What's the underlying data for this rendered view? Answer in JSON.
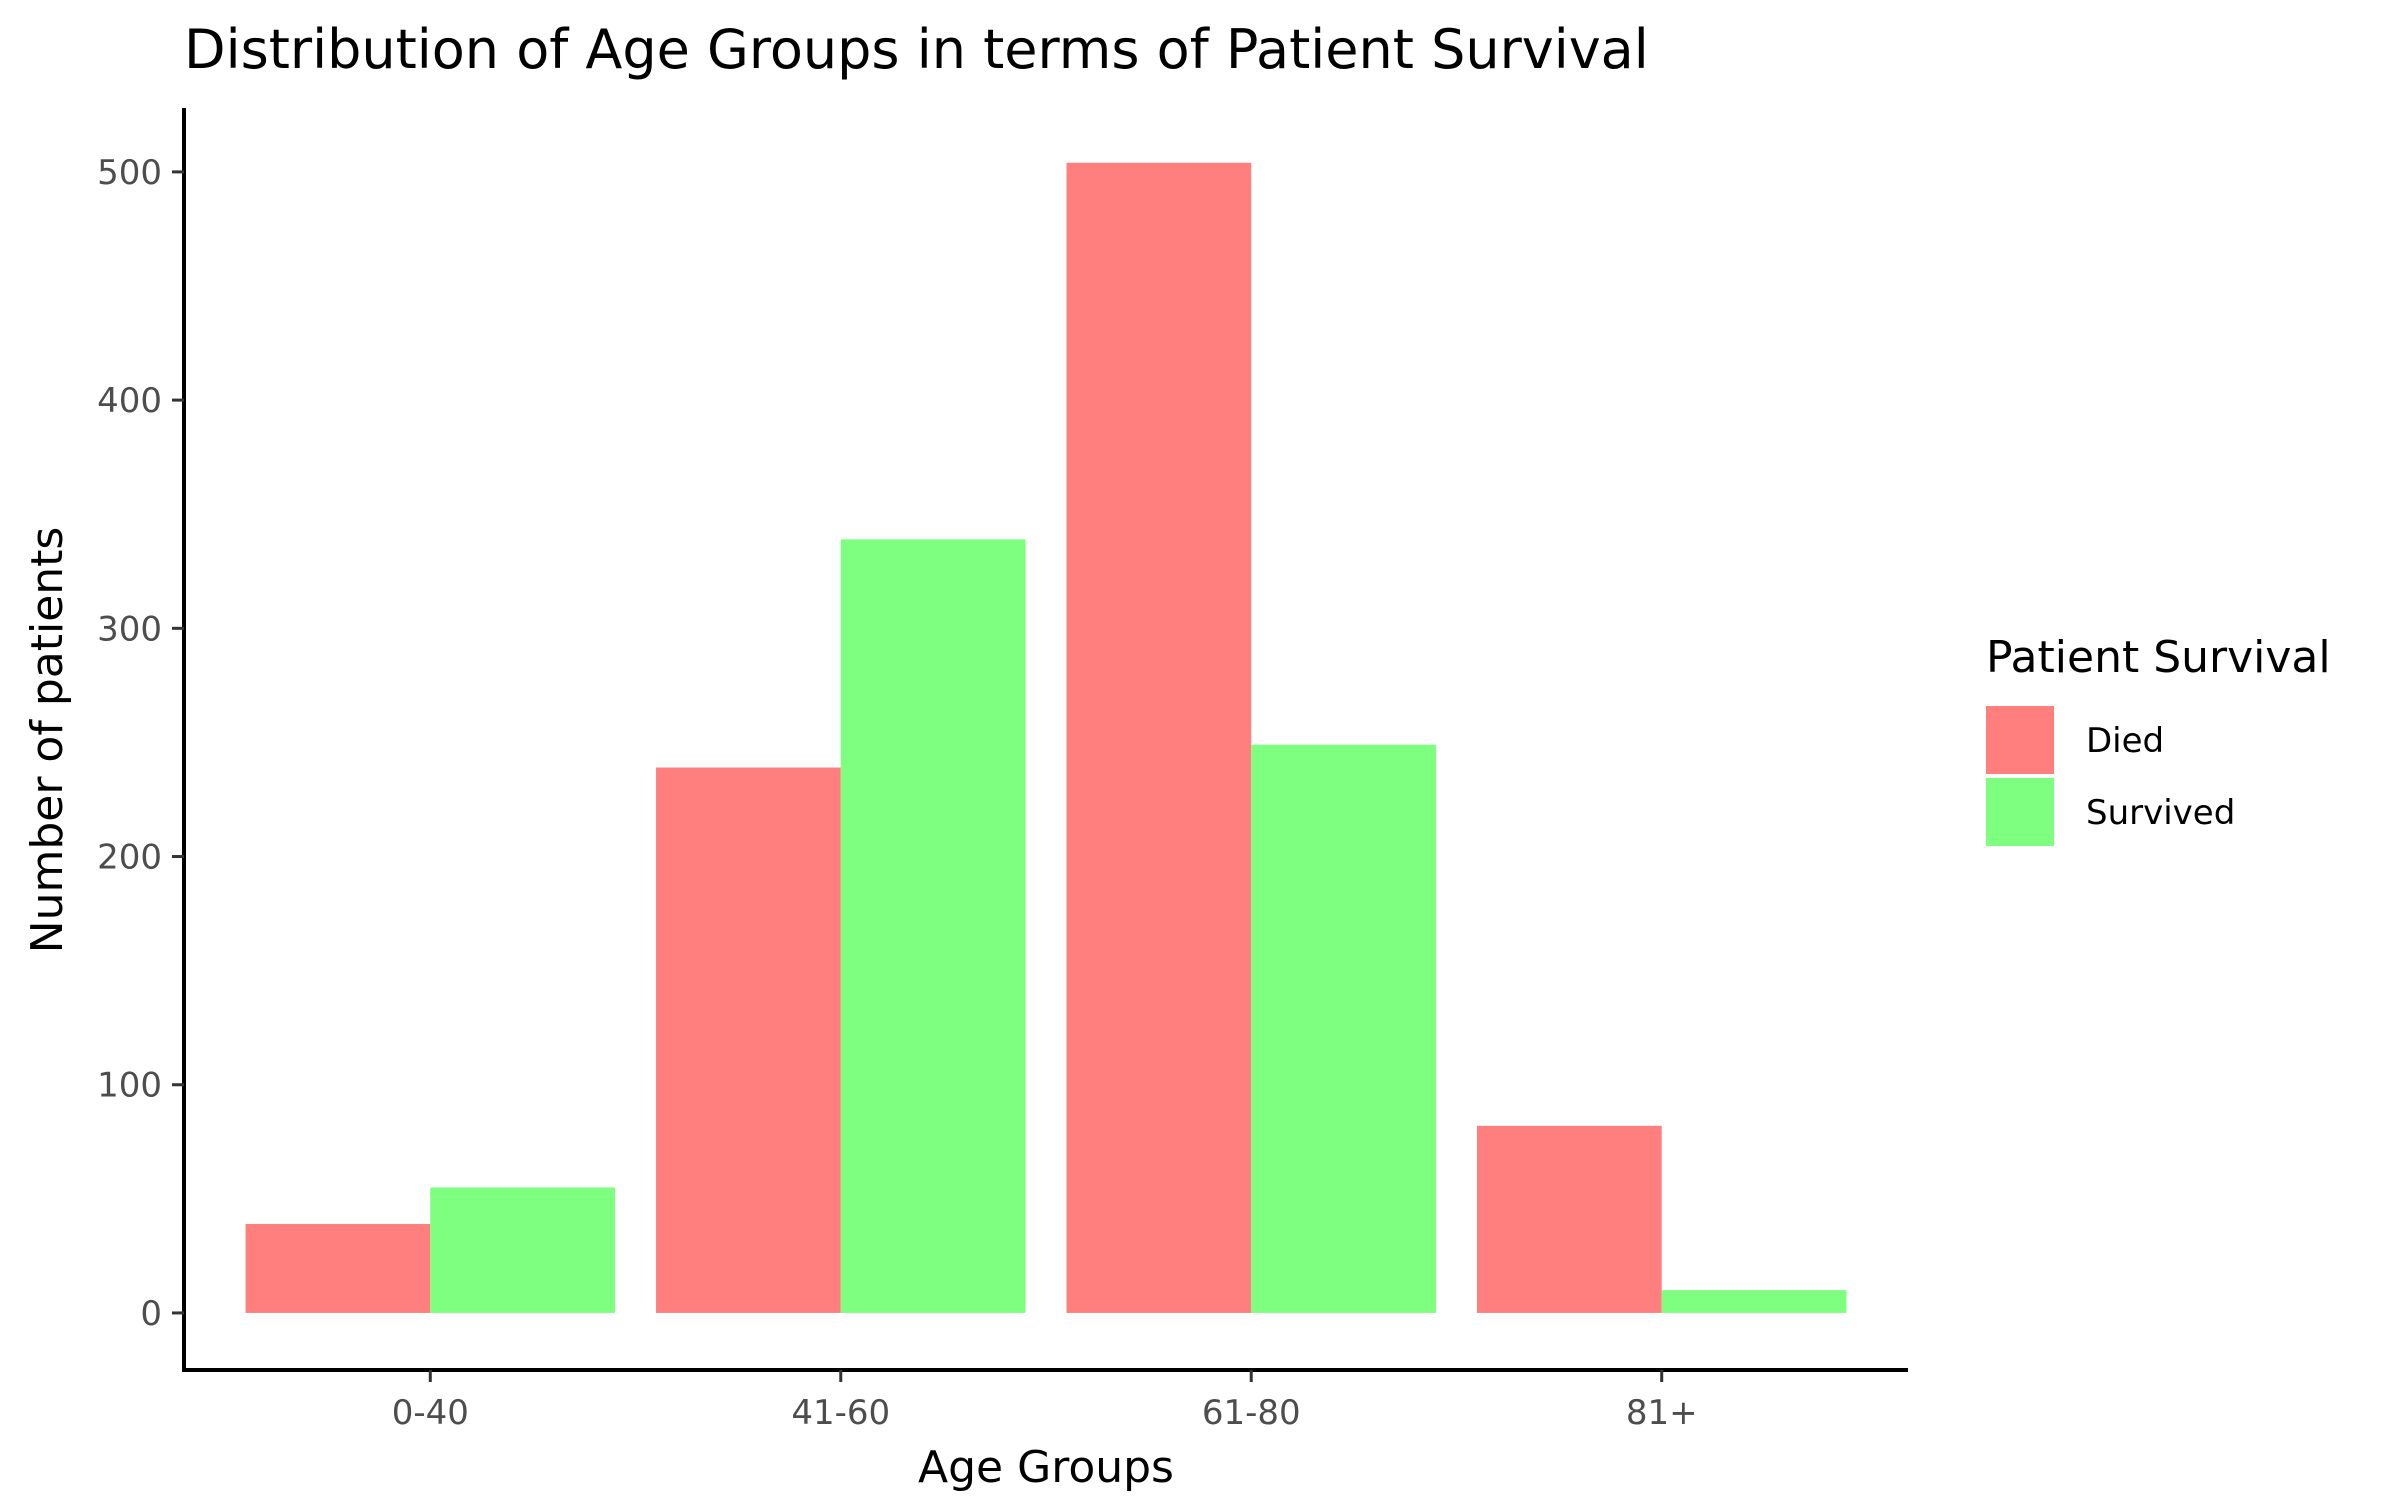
{
  "chart_data": {
    "type": "bar",
    "title": "Distribution of Age Groups in terms of Patient Survival",
    "xlabel": "Age Groups",
    "ylabel": "Number of patients",
    "categories": [
      "0-40",
      "41-60",
      "61-80",
      "81+"
    ],
    "series": [
      {
        "name": "Died",
        "values": [
          39,
          239,
          504,
          82
        ],
        "color": "#ff7f7f"
      },
      {
        "name": "Survived",
        "values": [
          55,
          339,
          249,
          10
        ],
        "color": "#7fff7f"
      }
    ],
    "yticks": [
      "0",
      "100",
      "200",
      "300",
      "400",
      "500"
    ],
    "ylim": [
      -25,
      528
    ],
    "grid": false,
    "legend": {
      "title": "Patient Survival",
      "placement": "right"
    }
  }
}
